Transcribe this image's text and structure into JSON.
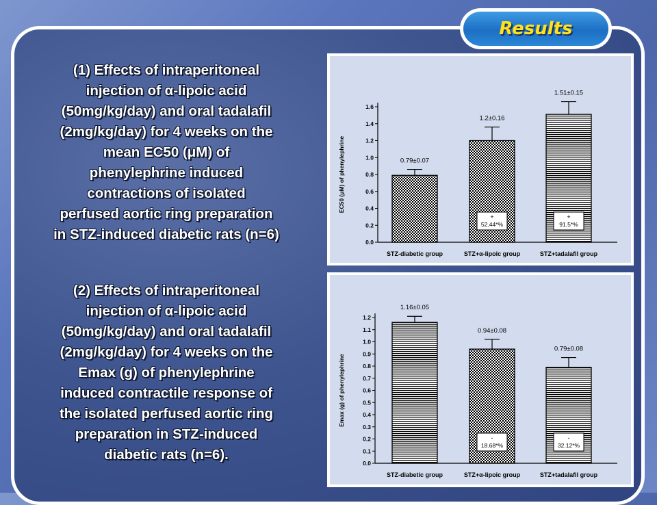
{
  "header": {
    "title": "Results"
  },
  "text": {
    "p1_lines": [
      "(1) Effects of intraperitoneal",
      "injection of α-lipoic acid",
      "(50mg/kg/day) and oral tadalafil",
      "(2mg/kg/day) for 4 weeks on the",
      "mean EC50 (μM) of",
      "phenylephrine induced",
      "contractions of  isolated",
      "perfused aortic ring preparation",
      "in STZ-induced diabetic rats (n=6)"
    ],
    "p2_lines": [
      "(2) Effects of intraperitoneal",
      "injection of α-lipoic acid",
      "(50mg/kg/day)  and oral tadalafil",
      "(2mg/kg/day) for 4 weeks on the",
      "Emax (g) of phenylephrine",
      "induced contractile response of",
      "the isolated perfused aortic ring",
      "preparation in STZ-induced",
      "diabetic rats (n=6)."
    ]
  },
  "chart_data": [
    {
      "type": "bar",
      "ylabel": "EC50 (μM) of phenylephrine",
      "ylim": [
        0,
        1.6
      ],
      "yticks": [
        "0.0",
        "0.2",
        "0.4",
        "0.6",
        "0.8",
        "1.0",
        "1.2",
        "1.4",
        "1.6"
      ],
      "categories": [
        "STZ-diabetic group",
        "STZ+α-lipoic group",
        "STZ+tadalafil group"
      ],
      "values": [
        0.79,
        1.2,
        1.51
      ],
      "errors": [
        0.07,
        0.16,
        0.15
      ],
      "value_labels": [
        "0.79±0.07",
        "1.2±0.16",
        "1.51±0.15"
      ],
      "annotations": [
        null,
        {
          "sign": "+",
          "text": "52.44*%"
        },
        {
          "sign": "+",
          "text": "91.5*%"
        }
      ]
    },
    {
      "type": "bar",
      "ylabel": "Emax (g) of phenylephrine",
      "ylim": [
        0,
        1.2
      ],
      "yticks": [
        "0.0",
        "0.1",
        "0.2",
        "0.3",
        "0.4",
        "0.5",
        "0.6",
        "0.7",
        "0.8",
        "0.9",
        "1.0",
        "1.1",
        "1.2"
      ],
      "categories": [
        "STZ-diabetic group",
        "STZ+α-lipoic group",
        "STZ+tadalafil group"
      ],
      "values": [
        1.16,
        0.94,
        0.79
      ],
      "errors": [
        0.05,
        0.08,
        0.08
      ],
      "value_labels": [
        "1.16±0.05",
        "0.94±0.08",
        "0.79±0.08"
      ],
      "annotations": [
        null,
        {
          "sign": "-",
          "text": "18.68*%"
        },
        {
          "sign": "-",
          "text": "32.12*%"
        }
      ]
    }
  ],
  "colors": {
    "accent": "#ffe21a",
    "pill": "#1d6fc4",
    "chart_bg": "#d3dcee"
  }
}
